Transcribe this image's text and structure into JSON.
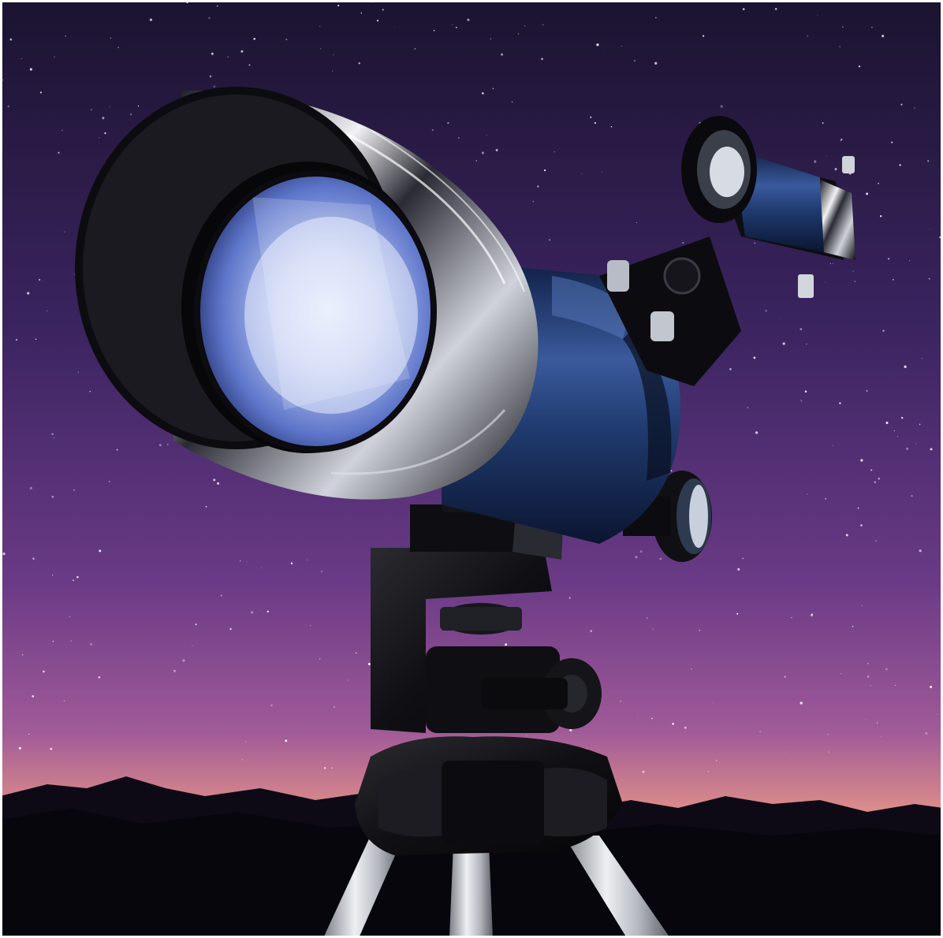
{
  "scene": {
    "subject": "refractor-telescope-on-tripod",
    "colors": {
      "sky_top": "#1c1330",
      "sky_mid": "#4a2a6e",
      "sky_low": "#9a5aa8",
      "horizon_glow": "#e8a08a",
      "mountains": "#0d0a16",
      "tube_blue": "#1f3a6e",
      "tube_black": "#0b0b10",
      "lens_blue": "#5a74c8",
      "tripod_silver": "#c9ccd2"
    }
  }
}
